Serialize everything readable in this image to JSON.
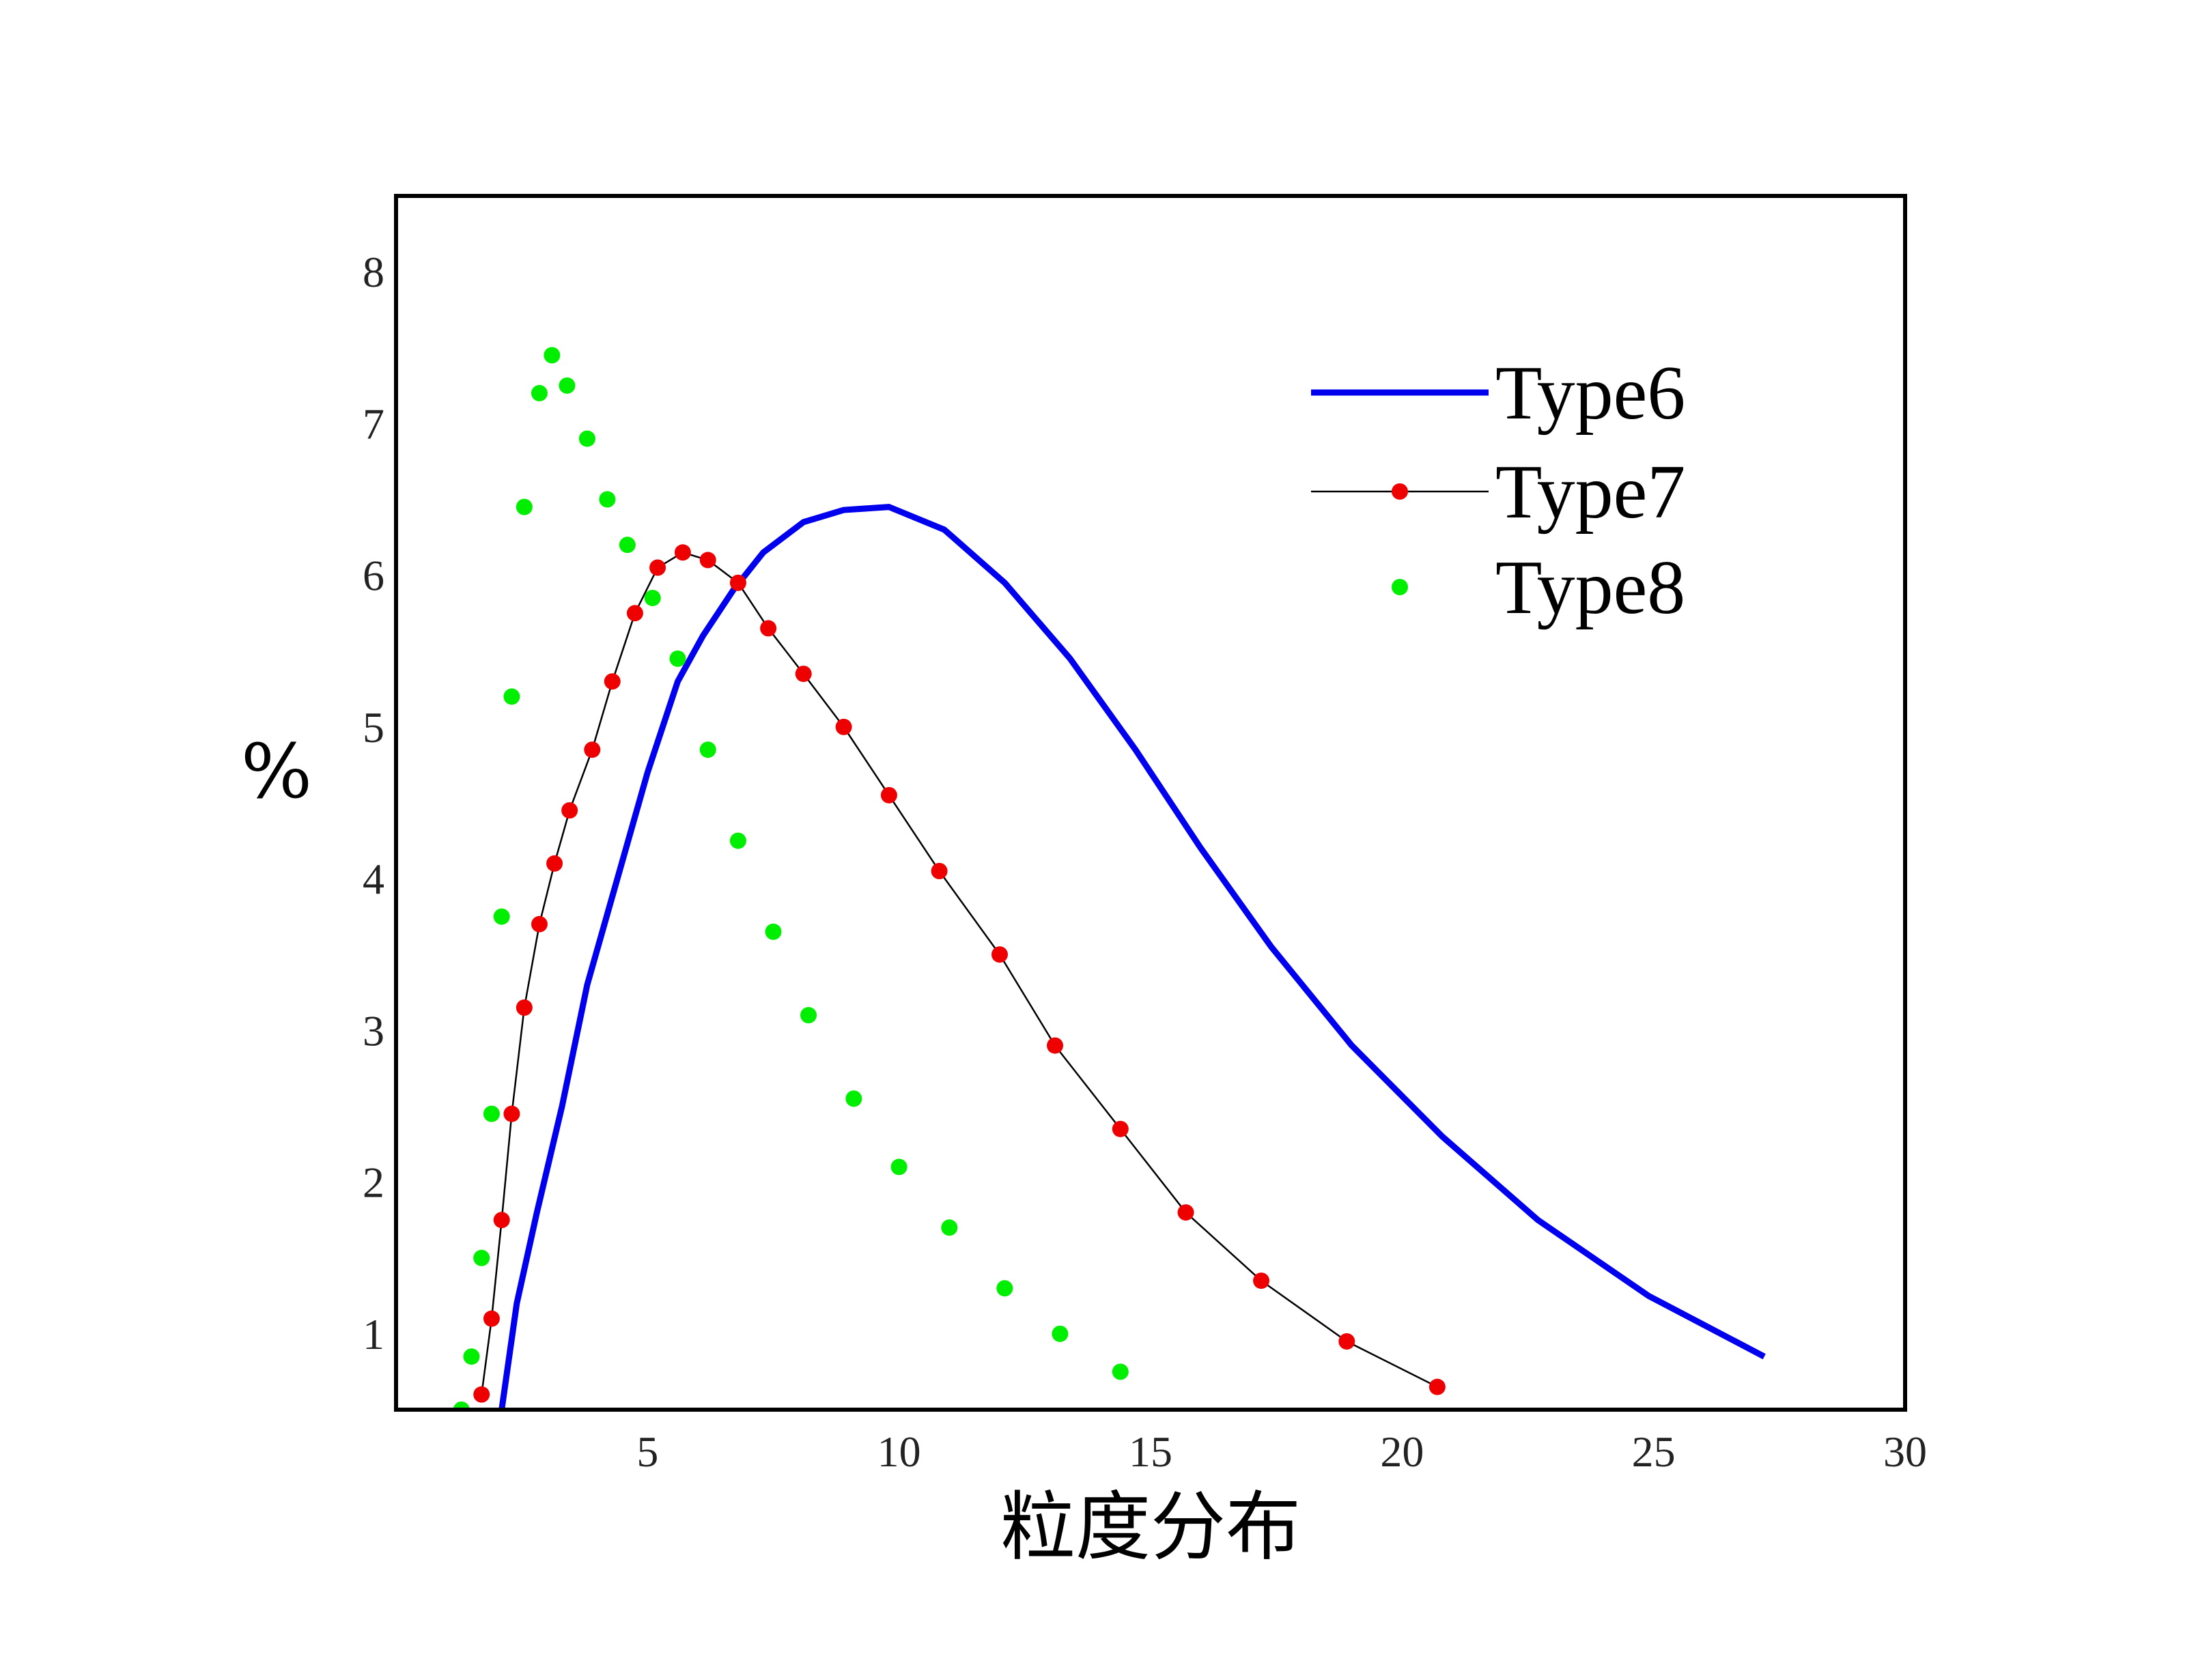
{
  "chart_data": {
    "type": "line",
    "xlabel": "粒度分布",
    "ylabel": "%",
    "xlim": [
      0,
      30
    ],
    "ylim": [
      0.5,
      8.5
    ],
    "xticks": [
      5,
      10,
      15,
      20,
      25,
      30
    ],
    "yticks": [
      1,
      2,
      3,
      4,
      5,
      6,
      7,
      8
    ],
    "grid": false,
    "legend_position": "top-right",
    "series": [
      {
        "name": "Type6",
        "style": "line",
        "color": "#0000ee",
        "x": [
          2.1,
          2.4,
          2.8,
          3.3,
          3.8,
          4.4,
          5.0,
          5.6,
          6.1,
          6.7,
          7.3,
          8.1,
          8.9,
          9.8,
          10.9,
          12.1,
          13.4,
          14.7,
          16.0,
          17.4,
          19.0,
          20.8,
          22.7,
          24.9,
          27.2
        ],
        "y": [
          0.5,
          1.2,
          1.8,
          2.5,
          3.3,
          4.0,
          4.7,
          5.3,
          5.6,
          5.9,
          6.15,
          6.35,
          6.43,
          6.45,
          6.3,
          5.95,
          5.45,
          4.85,
          4.2,
          3.55,
          2.9,
          2.3,
          1.75,
          1.25,
          0.85
        ]
      },
      {
        "name": "Type7",
        "style": "line+markers",
        "color": "#000000",
        "marker_color": "#ee0000",
        "x": [
          1.7,
          1.9,
          2.1,
          2.3,
          2.55,
          2.85,
          3.15,
          3.45,
          3.9,
          4.3,
          4.75,
          5.2,
          5.7,
          6.2,
          6.8,
          7.4,
          8.1,
          8.9,
          9.8,
          10.8,
          12.0,
          13.1,
          14.4,
          15.7,
          17.2,
          18.9,
          20.7
        ],
        "y": [
          0.6,
          1.1,
          1.75,
          2.45,
          3.15,
          3.7,
          4.1,
          4.45,
          4.85,
          5.3,
          5.75,
          6.05,
          6.15,
          6.1,
          5.95,
          5.65,
          5.35,
          5.0,
          4.55,
          4.05,
          3.5,
          2.9,
          2.35,
          1.8,
          1.35,
          0.95,
          0.65
        ]
      },
      {
        "name": "Type8",
        "style": "markers",
        "color": "#00ee00",
        "x": [
          1.3,
          1.5,
          1.7,
          1.9,
          2.1,
          2.3,
          2.55,
          2.85,
          3.1,
          3.4,
          3.8,
          4.2,
          4.6,
          5.1,
          5.6,
          6.2,
          6.8,
          7.5,
          8.2,
          9.1,
          10.0,
          11.0,
          12.1,
          13.2,
          14.4
        ],
        "y": [
          0.5,
          0.85,
          1.5,
          2.45,
          3.75,
          5.2,
          6.45,
          7.2,
          7.45,
          7.25,
          6.9,
          6.5,
          6.2,
          5.85,
          5.45,
          4.85,
          4.25,
          3.65,
          3.1,
          2.55,
          2.1,
          1.7,
          1.3,
          1.0,
          0.75
        ]
      }
    ]
  }
}
